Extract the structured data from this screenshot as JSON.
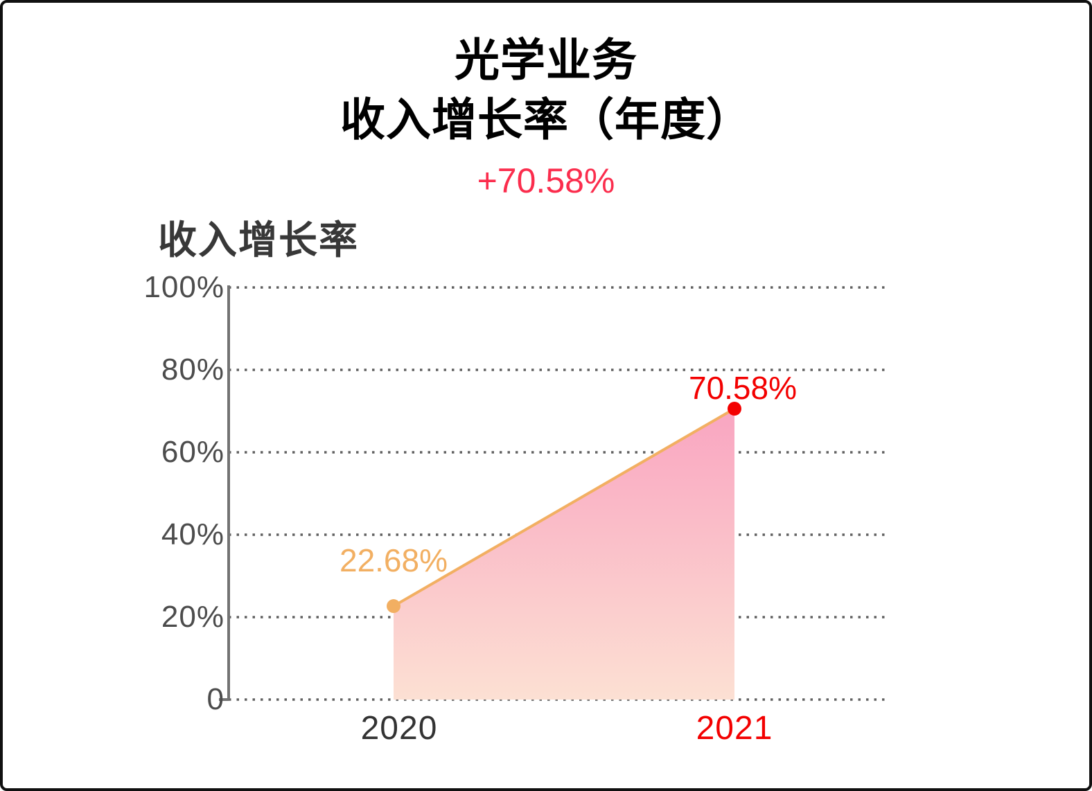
{
  "title": {
    "line1": "光学业务",
    "line2": "收入增长率（年度）"
  },
  "subtitle": {
    "text": "+70.58%",
    "color": "#FB2D4D"
  },
  "series_title": "收入增长率",
  "chart_data": {
    "type": "area",
    "title": "光学业务 收入增长率（年度）",
    "subtitle": "+70.58%",
    "categories": [
      "2020",
      "2021"
    ],
    "series": [
      {
        "name": "收入增长率",
        "values": [
          22.68,
          70.58
        ]
      }
    ],
    "point_labels": [
      "22.68%",
      "70.58%"
    ],
    "point_colors": [
      "#F2AF62",
      "#F30000"
    ],
    "category_label_colors": [
      "#333333",
      "#F30000"
    ],
    "line_color": "#F2AF62",
    "area_gradient": {
      "top": "#F9A5C1",
      "bottom": "#FCE0D3"
    },
    "ylim": [
      0,
      100
    ],
    "yticks": {
      "values": [
        100,
        80,
        60,
        40,
        20,
        0
      ],
      "labels": [
        "100%",
        "80%",
        "60%",
        "40%",
        "20%",
        "0"
      ]
    },
    "xlabel": "",
    "ylabel": "收入增长率",
    "grid": "horizontal-dotted",
    "grid_color": "#606060",
    "axis_color": "#737373",
    "legend_position": "top-left"
  }
}
